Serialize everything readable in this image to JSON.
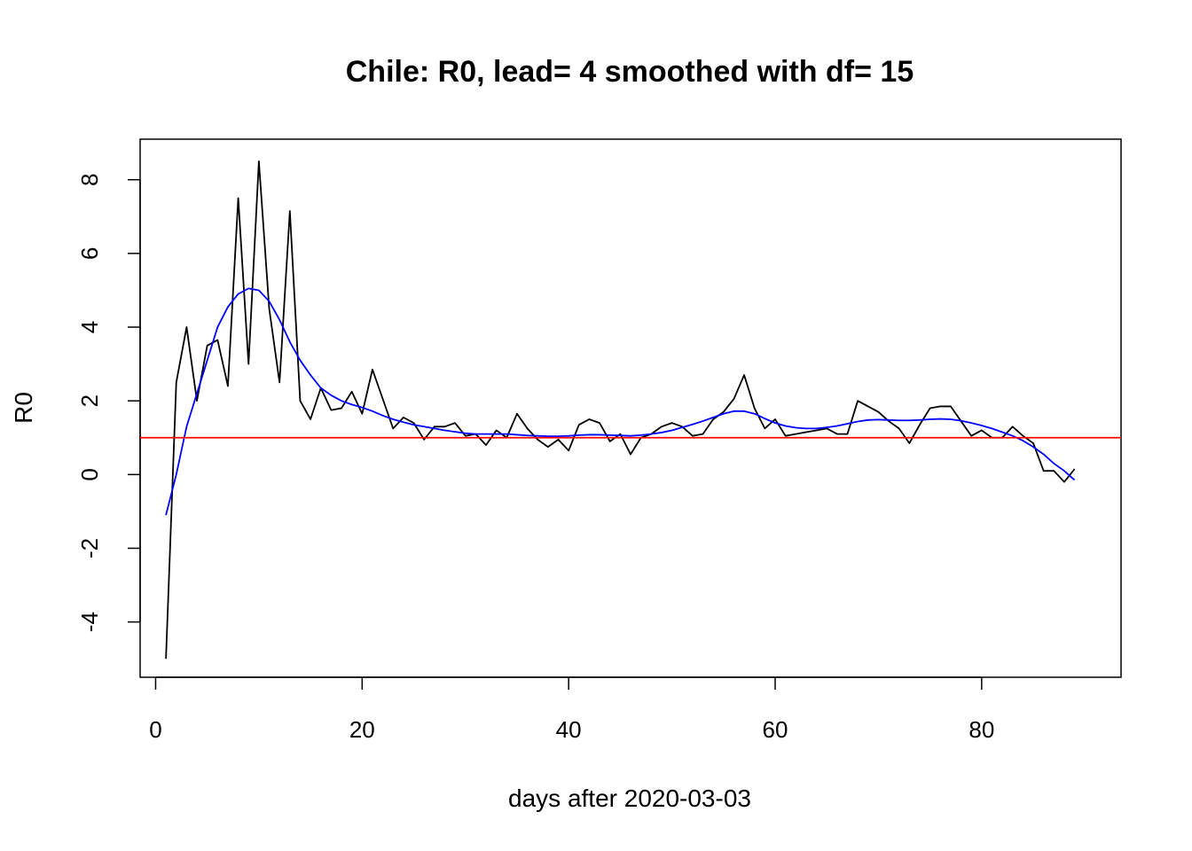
{
  "chart_data": {
    "type": "line",
    "title": "Chile: R0, lead= 4  smoothed with df= 15",
    "xlabel": "days after 2020-03-03",
    "ylabel": "R0",
    "xlim": [
      -1.5,
      93.5
    ],
    "ylim": [
      -5.5,
      9.1
    ],
    "x_ticks": [
      0,
      20,
      40,
      60,
      80
    ],
    "y_ticks": [
      -4,
      -2,
      0,
      2,
      4,
      6,
      8
    ],
    "grid": false,
    "reference_line": {
      "y": 1,
      "color": "#ff0000"
    },
    "x": [
      1,
      2,
      3,
      4,
      5,
      6,
      7,
      8,
      9,
      10,
      11,
      12,
      13,
      14,
      15,
      16,
      17,
      18,
      19,
      20,
      21,
      22,
      23,
      24,
      25,
      26,
      27,
      28,
      29,
      30,
      31,
      32,
      33,
      34,
      35,
      36,
      37,
      38,
      39,
      40,
      41,
      42,
      43,
      44,
      45,
      46,
      47,
      48,
      49,
      50,
      51,
      52,
      53,
      54,
      55,
      56,
      57,
      58,
      59,
      60,
      61,
      62,
      63,
      64,
      65,
      66,
      67,
      68,
      69,
      70,
      71,
      72,
      73,
      74,
      75,
      76,
      77,
      78,
      79,
      80,
      81,
      82,
      83,
      84,
      85,
      86,
      87,
      88,
      89
    ],
    "series": [
      {
        "color": "#000000",
        "values": [
          -5.0,
          2.5,
          4.0,
          2.0,
          3.5,
          3.65,
          2.4,
          7.5,
          3.0,
          8.5,
          4.5,
          2.5,
          7.15,
          2.0,
          1.5,
          2.35,
          1.75,
          1.8,
          2.25,
          1.65,
          2.85,
          2.05,
          1.25,
          1.55,
          1.4,
          0.95,
          1.3,
          1.3,
          1.4,
          1.05,
          1.1,
          0.8,
          1.2,
          1.0,
          1.65,
          1.25,
          0.95,
          0.75,
          0.95,
          0.65,
          1.35,
          1.5,
          1.4,
          0.9,
          1.1,
          0.55,
          1.0,
          1.1,
          1.3,
          1.4,
          1.3,
          1.05,
          1.1,
          1.5,
          1.7,
          2.05,
          2.7,
          1.8,
          1.25,
          1.5,
          1.05,
          1.1,
          1.15,
          1.2,
          1.25,
          1.1,
          1.1,
          2.0,
          1.85,
          1.7,
          1.45,
          1.25,
          0.85,
          1.35,
          1.8,
          1.85,
          1.85,
          1.45,
          1.05,
          1.2,
          1.0,
          1.0,
          1.3,
          1.05,
          0.85,
          0.1,
          0.1,
          -0.2,
          0.15
        ]
      },
      {
        "color": "#0000ff",
        "values": [
          -1.1,
          0.0,
          1.3,
          2.2,
          3.1,
          4.0,
          4.55,
          4.9,
          5.05,
          5.0,
          4.7,
          4.2,
          3.6,
          3.1,
          2.7,
          2.35,
          2.15,
          2.0,
          1.9,
          1.82,
          1.72,
          1.6,
          1.5,
          1.42,
          1.35,
          1.3,
          1.25,
          1.2,
          1.16,
          1.12,
          1.1,
          1.1,
          1.1,
          1.1,
          1.08,
          1.06,
          1.05,
          1.04,
          1.04,
          1.05,
          1.07,
          1.08,
          1.08,
          1.07,
          1.06,
          1.05,
          1.07,
          1.1,
          1.14,
          1.2,
          1.28,
          1.36,
          1.45,
          1.55,
          1.65,
          1.72,
          1.72,
          1.65,
          1.52,
          1.4,
          1.32,
          1.27,
          1.25,
          1.25,
          1.28,
          1.32,
          1.38,
          1.44,
          1.48,
          1.49,
          1.48,
          1.47,
          1.47,
          1.48,
          1.5,
          1.51,
          1.5,
          1.46,
          1.4,
          1.33,
          1.25,
          1.15,
          1.05,
          0.92,
          0.75,
          0.55,
          0.3,
          0.1,
          -0.15
        ]
      }
    ]
  }
}
